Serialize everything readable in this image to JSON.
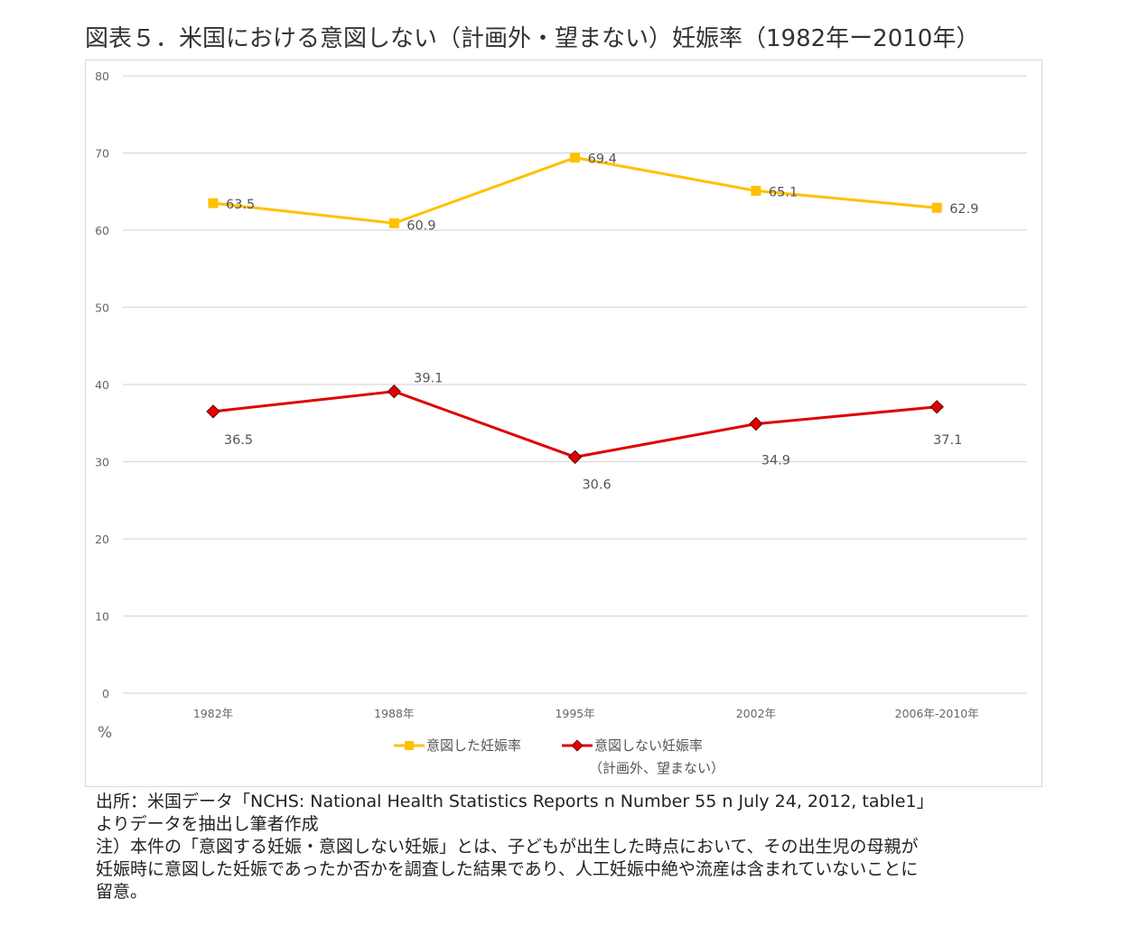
{
  "title": "図表５．米国における意図しない（計画外・望まない）妊娠率（1982年ー2010年）",
  "chart_data": {
    "type": "line",
    "title": "図表５．米国における意図しない（計画外・望まない）妊娠率（1982年ー2010年）",
    "xlabel": "",
    "ylabel": "%",
    "categories": [
      "1982年",
      "1988年",
      "1995年",
      "2002年",
      "2006年-2010年"
    ],
    "ylim": [
      0,
      80
    ],
    "yticks": [
      0,
      10,
      20,
      30,
      40,
      50,
      60,
      70,
      80
    ],
    "grid": true,
    "legend_position": "bottom",
    "series": [
      {
        "name": "意図した妊娠率",
        "color": "#FFC000",
        "marker": "square",
        "values": [
          63.5,
          60.9,
          69.4,
          65.1,
          62.9
        ],
        "labels": [
          "63.5",
          "60.9",
          "69.4",
          "65.1",
          "62.9"
        ]
      },
      {
        "name": "意図しない妊娠率",
        "name_line2": "（計画外、望まない）",
        "color": "#E00000",
        "marker": "diamond",
        "values": [
          36.5,
          39.1,
          30.6,
          34.9,
          37.1
        ],
        "labels": [
          "36.5",
          "39.1",
          "30.6",
          "34.9",
          "37.1"
        ]
      }
    ]
  },
  "notes": {
    "source_line1": "出所：米国データ「NCHS: National Health Statistics Reports n Number 55 n July 24, 2012, table1」",
    "source_line2": "よりデータを抽出し筆者作成",
    "note_line1": "注）本件の「意図する妊娠・意図しない妊娠」とは、子どもが出生した時点において、その出生児の母親が",
    "note_line2": "妊娠時に意図した妊娠であったか否かを調査した結果であり、人工妊娠中絶や流産は含まれていないことに",
    "note_line3": "留意。"
  }
}
